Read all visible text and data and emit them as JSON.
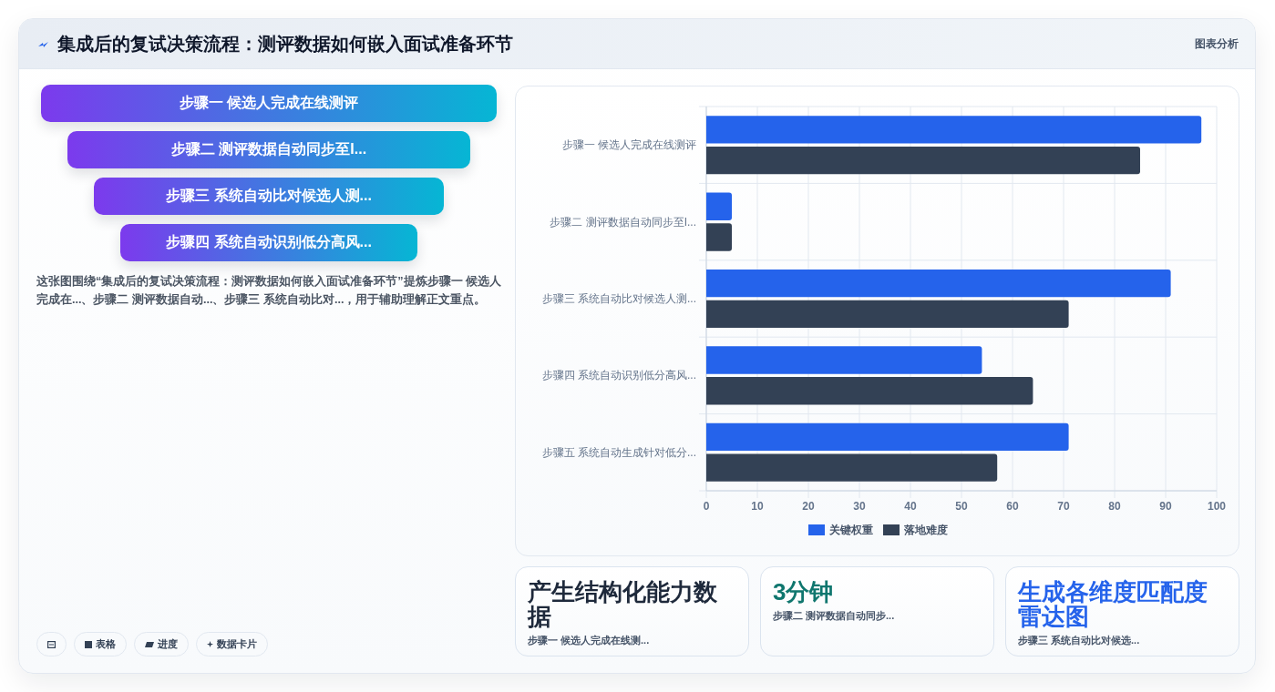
{
  "chart_data": [
    {
      "type": "other",
      "title": "集成后的复试决策流程：测评数据如何嵌入面试准备环节",
      "annotations": [
        "图表分析"
      ]
    },
    {
      "type": "other",
      "categories": [
        "步骤一 候选人完成在线测评",
        "步骤二 测评数据自动同步至I...",
        "步骤三 系统自动比对候选人测...",
        "步骤四 系统自动识别低分高风..."
      ],
      "annotations": [
        "这张图围绕“集成后的复试决策流程：测评数据如何嵌入面试准备环节”提炼步骤一 候选人完成在...、步骤二 测评数据自动...、步骤三 系统自动比对...，用于辅助理解正文重点。"
      ]
    },
    {
      "type": "other",
      "categories": [
        null,
        "表格",
        "进度",
        "数据卡片"
      ]
    },
    {
      "type": "bar",
      "orientation": "horizontal",
      "categories": [
        "步骤一 候选人完成在线测评",
        "步骤二 测评数据自动同步至I...",
        "步骤三 系统自动比对候选人测...",
        "步骤四 系统自动识别低分高风...",
        "步骤五 系统自动生成针对低分..."
      ],
      "series": [
        {
          "name": "关键权重",
          "color": "#2563eb",
          "values": [
            97,
            5,
            91,
            54,
            71
          ]
        },
        {
          "name": "落地难度",
          "color": "#334155",
          "values": [
            85,
            5,
            71,
            64,
            57
          ]
        }
      ],
      "xlim": [
        0,
        100
      ],
      "xticks": [
        0,
        10,
        20,
        30,
        40,
        50,
        60,
        70,
        80,
        90,
        100
      ],
      "grid": true,
      "legend": "bottom"
    },
    {
      "type": "other",
      "title": "产生结构化能力数据",
      "subtitle": "步骤一 候选人完成在线测...",
      "color": "#1e293b"
    },
    {
      "type": "other",
      "title": "3分钟",
      "subtitle": "步骤二 测评数据自动同步...",
      "color": "#0f766e"
    },
    {
      "type": "other",
      "title": "生成各维度匹配度雷达图",
      "subtitle": "步骤三 系统自动比对候选...",
      "color": "#2563eb"
    }
  ]
}
